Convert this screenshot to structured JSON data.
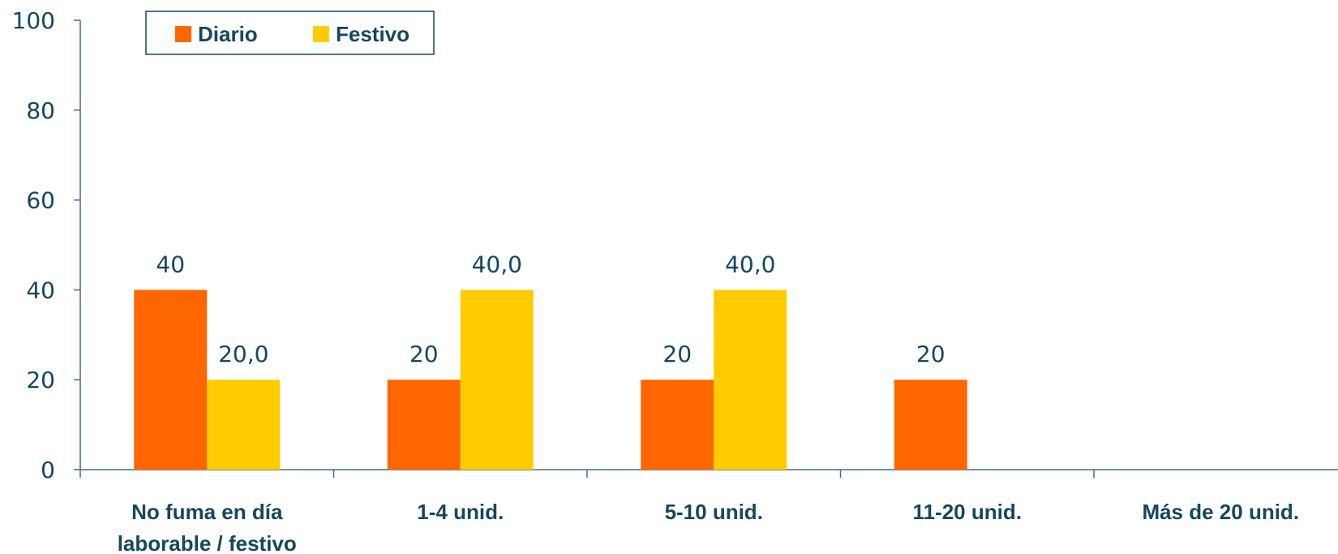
{
  "chart_data": {
    "type": "bar",
    "categories": [
      [
        "No fuma en día",
        "laborable / festivo"
      ],
      [
        "1-4 unid."
      ],
      [
        "5-10 unid."
      ],
      [
        "11-20 unid."
      ],
      [
        "Más de 20 unid."
      ]
    ],
    "series": [
      {
        "name": "Diario",
        "color": "#ff6600",
        "values": [
          40,
          20,
          20,
          20,
          null
        ],
        "labels": [
          "40",
          "20",
          "20",
          "20",
          null
        ]
      },
      {
        "name": "Festivo",
        "color": "#ffcc00",
        "values": [
          20,
          40,
          40,
          null,
          null
        ],
        "labels": [
          "20,0",
          "40,0",
          "40,0",
          null,
          null
        ]
      }
    ],
    "ylim": [
      0,
      100
    ],
    "yticks": [
      0,
      20,
      40,
      60,
      80,
      100
    ],
    "ytick_labels": [
      "0",
      "20",
      "40",
      "60",
      "80",
      "100"
    ],
    "grid": false,
    "legend_position": "top-left"
  }
}
